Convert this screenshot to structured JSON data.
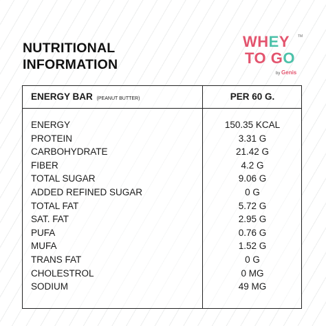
{
  "heading": {
    "line1": "NUTRITIONAL",
    "line2": "INFORMATION"
  },
  "logo": {
    "line1": "WHEY",
    "line2": "TO GO",
    "tm": "TM",
    "by": "by",
    "brand": "Genis"
  },
  "table": {
    "product": "ENERGY BAR",
    "variant": "(PEANUT BUTTER)",
    "per": "PER 60 G.",
    "rows": [
      {
        "name": "ENERGY",
        "value": "150.35 KCAL"
      },
      {
        "name": "PROTEIN",
        "value": "3.31 G"
      },
      {
        "name": "CARBOHYDRATE",
        "value": "21.42 G"
      },
      {
        "name": "FIBER",
        "value": "4.2 G"
      },
      {
        "name": "TOTAL SUGAR",
        "value": "9.06 G"
      },
      {
        "name": "ADDED REFINED SUGAR",
        "value": "0 G"
      },
      {
        "name": "TOTAL FAT",
        "value": "5.72 G"
      },
      {
        "name": "SAT. FAT",
        "value": "2.95 G"
      },
      {
        "name": "PUFA",
        "value": "0.76 G"
      },
      {
        "name": "MUFA",
        "value": "1.52 G"
      },
      {
        "name": "TRANS FAT",
        "value": "0 G"
      },
      {
        "name": "CHOLESTROL",
        "value": "0 MG"
      },
      {
        "name": "SODIUM",
        "value": "49 MG"
      }
    ]
  },
  "colors": {
    "brand_pink": "#e3546e",
    "brand_teal": "#4cc1a9",
    "border": "#222222"
  }
}
